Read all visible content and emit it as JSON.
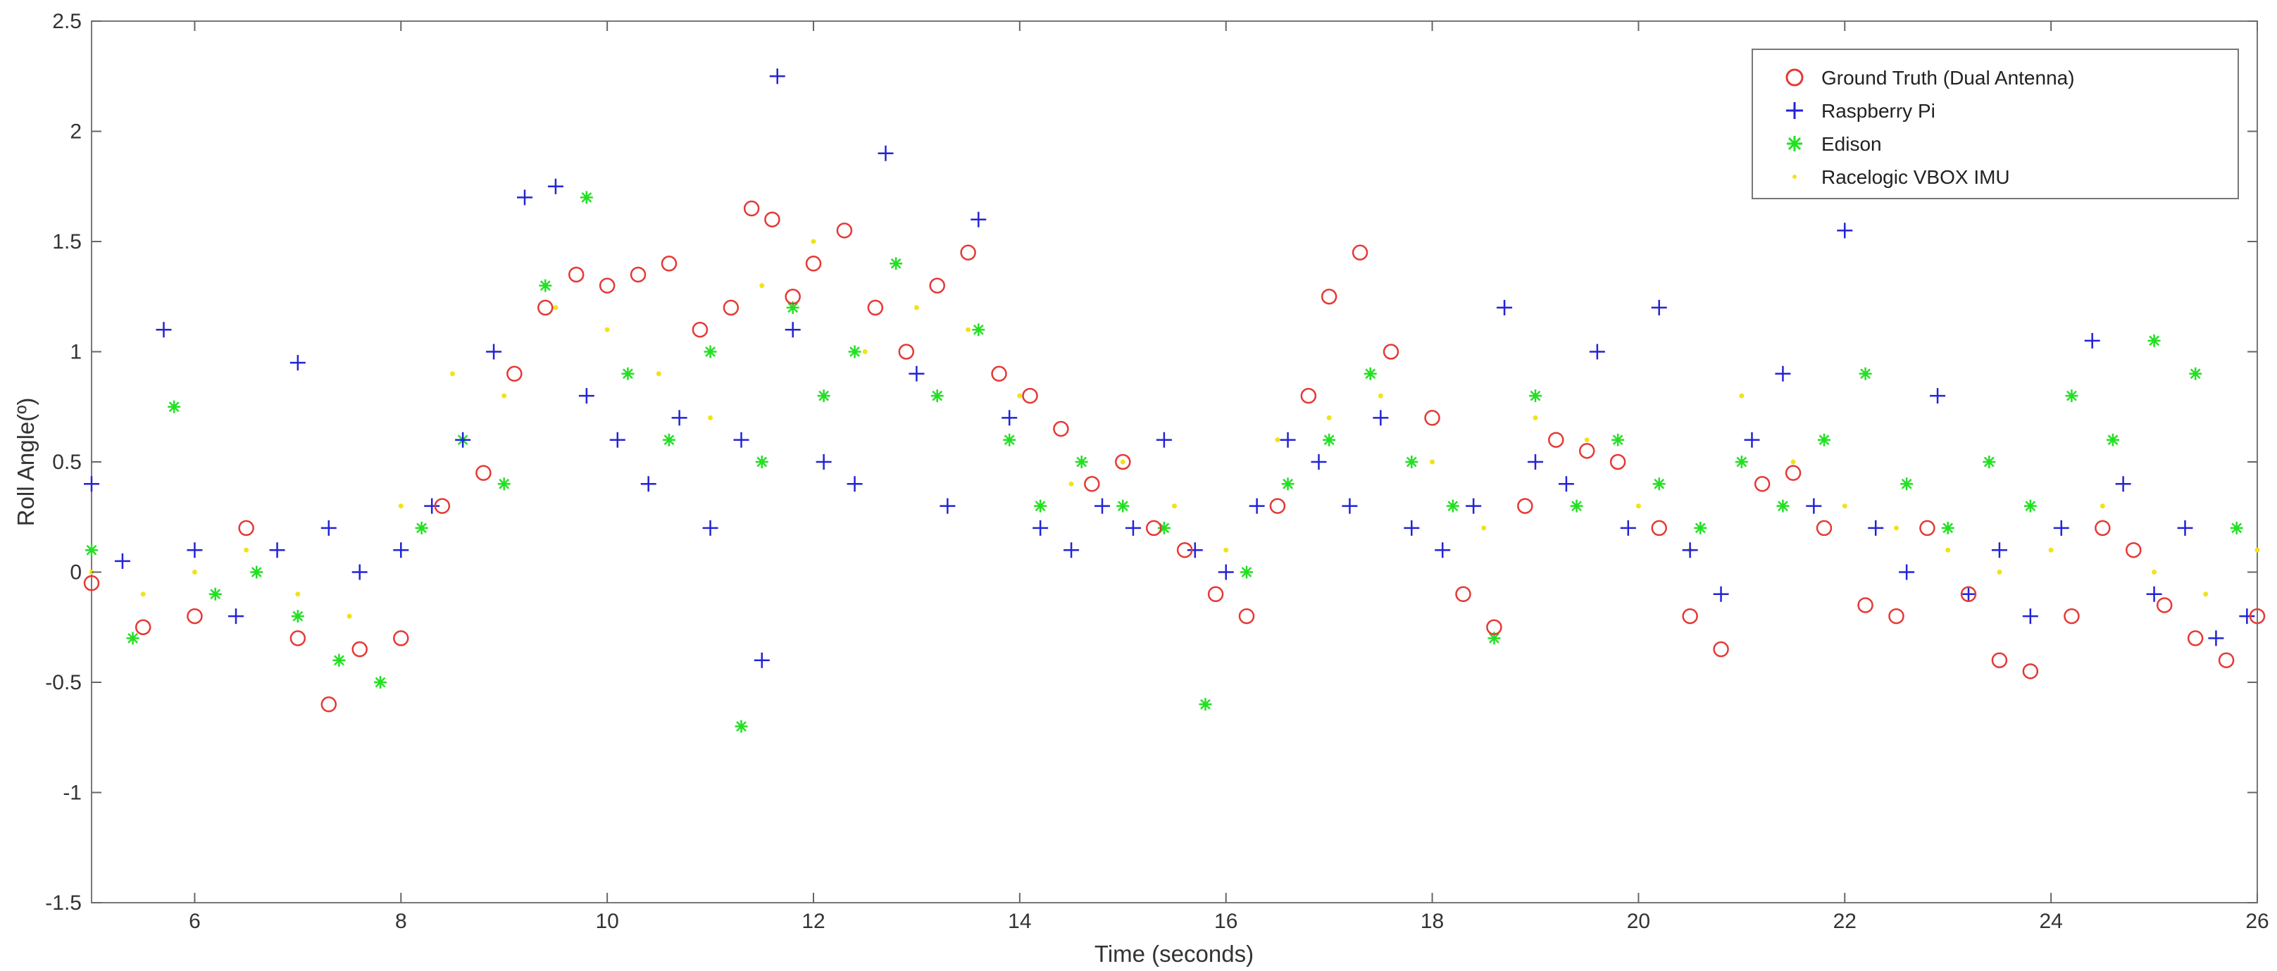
{
  "chart_data": {
    "type": "scatter",
    "title": "",
    "xlabel": "Time (seconds)",
    "ylabel": "Roll Angle(º)",
    "xlim": [
      5,
      26
    ],
    "ylim": [
      -1.5,
      2.5
    ],
    "x_ticks": [
      6,
      8,
      10,
      12,
      14,
      16,
      18,
      20,
      22,
      24,
      26
    ],
    "y_ticks": [
      -1.5,
      -1,
      -0.5,
      0,
      0.5,
      1,
      1.5,
      2,
      2.5
    ],
    "x_tick_labels": [
      "6",
      "8",
      "10",
      "12",
      "14",
      "16",
      "18",
      "20",
      "22",
      "24",
      "26"
    ],
    "y_tick_labels": [
      "-1.5",
      "-1",
      "-0.5",
      "0",
      "0.5",
      "1",
      "1.5",
      "2",
      "2.5"
    ],
    "grid": false,
    "legend_position": "top-right",
    "colors": {
      "ground_truth": "#e53935",
      "raspberry_pi": "#2323d6",
      "edison": "#22e022",
      "vbox": "#f2e21a",
      "axis": "#666666"
    },
    "series": [
      {
        "name": "Ground Truth (Dual Antenna)",
        "marker": "circle",
        "x": [
          5.0,
          5.5,
          6.0,
          6.5,
          7.0,
          7.3,
          7.6,
          8.0,
          8.4,
          8.8,
          9.1,
          9.4,
          9.7,
          10.0,
          10.3,
          10.6,
          10.9,
          11.2,
          11.4,
          11.6,
          11.8,
          12.0,
          12.3,
          12.6,
          12.9,
          13.2,
          13.5,
          13.8,
          14.1,
          14.4,
          14.7,
          15.0,
          15.3,
          15.6,
          15.9,
          16.2,
          16.5,
          16.8,
          17.0,
          17.3,
          17.6,
          18.0,
          18.3,
          18.6,
          18.9,
          19.2,
          19.5,
          19.8,
          20.2,
          20.5,
          20.8,
          21.2,
          21.5,
          21.8,
          22.2,
          22.5,
          22.8,
          23.2,
          23.5,
          23.8,
          24.2,
          24.5,
          24.8,
          25.1,
          25.4,
          25.7,
          26.0
        ],
        "y": [
          -0.05,
          -0.25,
          -0.2,
          0.2,
          -0.3,
          -0.6,
          -0.35,
          -0.3,
          0.3,
          0.45,
          0.9,
          1.2,
          1.35,
          1.3,
          1.35,
          1.4,
          1.1,
          1.2,
          1.65,
          1.6,
          1.25,
          1.4,
          1.55,
          1.2,
          1.0,
          1.3,
          1.45,
          0.9,
          0.8,
          0.65,
          0.4,
          0.5,
          0.2,
          0.1,
          -0.1,
          -0.2,
          0.3,
          0.8,
          1.25,
          1.45,
          1.0,
          0.7,
          -0.1,
          -0.25,
          0.3,
          0.6,
          0.55,
          0.5,
          0.2,
          -0.2,
          -0.35,
          0.4,
          0.45,
          0.2,
          -0.15,
          -0.2,
          0.2,
          -0.1,
          -0.4,
          -0.45,
          -0.2,
          0.2,
          0.1,
          -0.15,
          -0.3,
          -0.4,
          -0.2
        ]
      },
      {
        "name": "Raspberry Pi",
        "marker": "plus",
        "x": [
          5.0,
          5.3,
          5.7,
          6.0,
          6.4,
          6.8,
          7.0,
          7.3,
          7.6,
          8.0,
          8.3,
          8.6,
          8.9,
          9.2,
          9.5,
          9.8,
          10.1,
          10.4,
          10.7,
          11.0,
          11.3,
          11.5,
          11.65,
          11.8,
          12.1,
          12.4,
          12.7,
          13.0,
          13.3,
          13.6,
          13.9,
          14.2,
          14.5,
          14.8,
          15.1,
          15.4,
          15.7,
          16.0,
          16.3,
          16.6,
          16.9,
          17.2,
          17.5,
          17.8,
          18.1,
          18.4,
          18.7,
          19.0,
          19.3,
          19.6,
          19.9,
          20.2,
          20.5,
          20.8,
          21.1,
          21.4,
          21.7,
          22.0,
          22.3,
          22.6,
          22.9,
          23.2,
          23.5,
          23.8,
          24.1,
          24.4,
          24.7,
          25.0,
          25.3,
          25.6,
          25.9
        ],
        "y": [
          0.4,
          0.05,
          1.1,
          0.1,
          -0.2,
          0.1,
          0.95,
          0.2,
          0.0,
          0.1,
          0.3,
          0.6,
          1.0,
          1.7,
          1.75,
          0.8,
          0.6,
          0.4,
          0.7,
          0.2,
          0.6,
          -0.4,
          2.25,
          1.1,
          0.5,
          0.4,
          1.9,
          0.9,
          0.3,
          1.6,
          0.7,
          0.2,
          0.1,
          0.3,
          0.2,
          0.6,
          0.1,
          0.0,
          0.3,
          0.6,
          0.5,
          0.3,
          0.7,
          0.2,
          0.1,
          0.3,
          1.2,
          0.5,
          0.4,
          1.0,
          0.2,
          1.2,
          0.1,
          -0.1,
          0.6,
          0.9,
          0.3,
          1.55,
          0.2,
          0.0,
          0.8,
          -0.1,
          0.1,
          -0.2,
          0.2,
          1.05,
          0.4,
          -0.1,
          0.2,
          -0.3,
          -0.2
        ]
      },
      {
        "name": "Edison",
        "marker": "star",
        "x": [
          5.0,
          5.4,
          5.8,
          6.2,
          6.6,
          7.0,
          7.4,
          7.8,
          8.2,
          8.6,
          9.0,
          9.4,
          9.8,
          10.2,
          10.6,
          11.0,
          11.3,
          11.5,
          11.8,
          12.1,
          12.4,
          12.8,
          13.2,
          13.6,
          13.9,
          14.2,
          14.6,
          15.0,
          15.4,
          15.8,
          16.2,
          16.6,
          17.0,
          17.4,
          17.8,
          18.2,
          18.6,
          19.0,
          19.4,
          19.8,
          20.2,
          20.6,
          21.0,
          21.4,
          21.8,
          22.2,
          22.6,
          23.0,
          23.4,
          23.8,
          24.2,
          24.6,
          25.0,
          25.4,
          25.8
        ],
        "y": [
          0.1,
          -0.3,
          0.75,
          -0.1,
          0.0,
          -0.2,
          -0.4,
          -0.5,
          0.2,
          0.6,
          0.4,
          1.3,
          1.7,
          0.9,
          0.6,
          1.0,
          -0.7,
          0.5,
          1.2,
          0.8,
          1.0,
          1.4,
          0.8,
          1.1,
          0.6,
          0.3,
          0.5,
          0.3,
          0.2,
          -0.6,
          0.0,
          0.4,
          0.6,
          0.9,
          0.5,
          0.3,
          -0.3,
          0.8,
          0.3,
          0.6,
          0.4,
          0.2,
          0.5,
          0.3,
          0.6,
          0.9,
          0.4,
          0.2,
          0.5,
          0.3,
          0.8,
          0.6,
          1.05,
          0.9,
          0.2
        ]
      },
      {
        "name": "Racelogic VBOX IMU",
        "marker": "dot",
        "x": [
          5.0,
          5.5,
          6.0,
          6.5,
          7.0,
          7.5,
          8.0,
          8.5,
          9.0,
          9.5,
          10.0,
          10.5,
          11.0,
          11.5,
          12.0,
          12.5,
          13.0,
          13.5,
          14.0,
          14.5,
          15.0,
          15.5,
          16.0,
          16.5,
          17.0,
          17.5,
          18.0,
          18.5,
          19.0,
          19.5,
          20.0,
          20.5,
          21.0,
          21.5,
          22.0,
          22.5,
          23.0,
          23.5,
          24.0,
          24.5,
          25.0,
          25.5,
          26.0
        ],
        "y": [
          0.0,
          -0.1,
          0.0,
          0.1,
          -0.1,
          -0.2,
          0.3,
          0.9,
          0.8,
          1.2,
          1.1,
          0.9,
          0.7,
          1.3,
          1.5,
          1.0,
          1.2,
          1.1,
          0.8,
          0.4,
          0.5,
          0.3,
          0.1,
          0.6,
          0.7,
          0.8,
          0.5,
          0.2,
          0.7,
          0.6,
          0.3,
          0.1,
          0.8,
          0.5,
          0.3,
          0.2,
          0.1,
          0.0,
          0.1,
          0.3,
          0.0,
          -0.1,
          0.1
        ]
      }
    ]
  }
}
